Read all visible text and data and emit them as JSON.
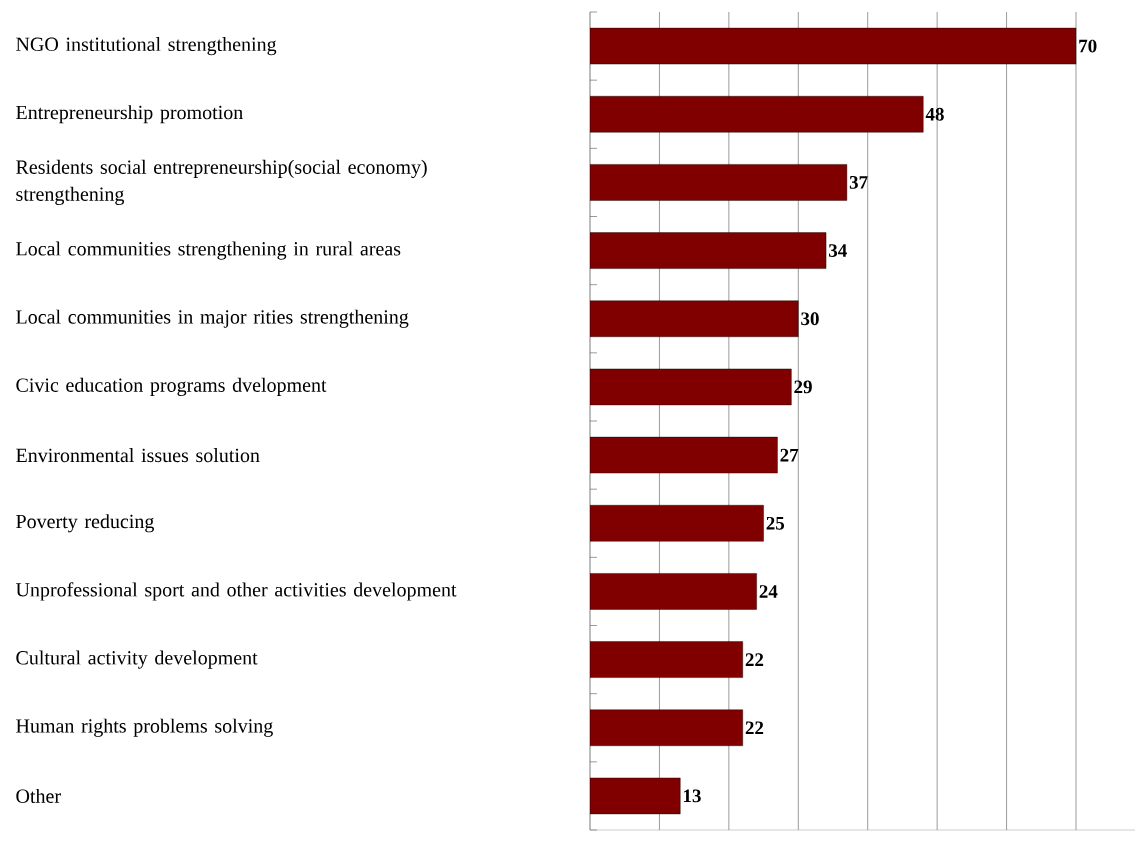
{
  "chart_data": {
    "type": "bar",
    "orientation": "horizontal",
    "categories": [
      "NGO institutional strengthening",
      "Entrepreneurship promotion",
      "Residents social entrepreneurship(social economy) strengthening",
      "Local communities strengthening in rural areas",
      "Local communities in major rities strengthening",
      "Civic education programs dvelopment",
      "Environmental issues solution",
      "Poverty reducing",
      "Unprofessional sport and other activities development",
      "Cultural activity development",
      "Human rights problems solving",
      "Other"
    ],
    "values": [
      70,
      48,
      37,
      34,
      30,
      29,
      27,
      25,
      24,
      22,
      22,
      13
    ],
    "color": "#800000",
    "xlim": [
      0,
      78.5
    ],
    "xticks": [
      {
        "value": 0,
        "label": null
      },
      {
        "value": 10,
        "label": null
      },
      {
        "value": 20,
        "label": null
      },
      {
        "value": 30,
        "label": null
      },
      {
        "value": 40,
        "label": null
      },
      {
        "value": 50,
        "label": null
      },
      {
        "value": 60,
        "label": null
      },
      {
        "value": 70,
        "label": null
      }
    ],
    "grid": "x",
    "tick_labels": "y",
    "data_labels": true
  }
}
